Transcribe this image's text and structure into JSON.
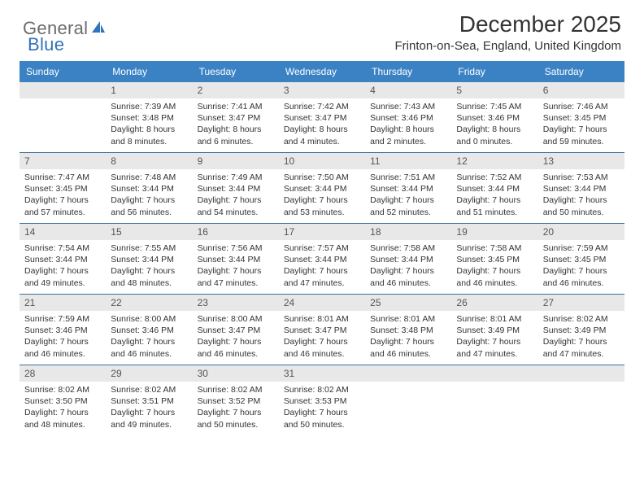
{
  "logo": {
    "general": "General",
    "blue": "Blue",
    "icon_fill": "#2f73b8"
  },
  "header": {
    "title": "December 2025",
    "location": "Frinton-on-Sea, England, United Kingdom"
  },
  "colors": {
    "header_bg": "#3b82c4",
    "header_text": "#ffffff",
    "daynum_bg": "#e8e8e8",
    "daynum_text": "#555555",
    "body_text": "#333333",
    "week_border": "#3b6fa0"
  },
  "weekdays": [
    "Sunday",
    "Monday",
    "Tuesday",
    "Wednesday",
    "Thursday",
    "Friday",
    "Saturday"
  ],
  "weeks": [
    [
      {
        "day": "",
        "lines": []
      },
      {
        "day": "1",
        "lines": [
          "Sunrise: 7:39 AM",
          "Sunset: 3:48 PM",
          "Daylight: 8 hours",
          "and 8 minutes."
        ]
      },
      {
        "day": "2",
        "lines": [
          "Sunrise: 7:41 AM",
          "Sunset: 3:47 PM",
          "Daylight: 8 hours",
          "and 6 minutes."
        ]
      },
      {
        "day": "3",
        "lines": [
          "Sunrise: 7:42 AM",
          "Sunset: 3:47 PM",
          "Daylight: 8 hours",
          "and 4 minutes."
        ]
      },
      {
        "day": "4",
        "lines": [
          "Sunrise: 7:43 AM",
          "Sunset: 3:46 PM",
          "Daylight: 8 hours",
          "and 2 minutes."
        ]
      },
      {
        "day": "5",
        "lines": [
          "Sunrise: 7:45 AM",
          "Sunset: 3:46 PM",
          "Daylight: 8 hours",
          "and 0 minutes."
        ]
      },
      {
        "day": "6",
        "lines": [
          "Sunrise: 7:46 AM",
          "Sunset: 3:45 PM",
          "Daylight: 7 hours",
          "and 59 minutes."
        ]
      }
    ],
    [
      {
        "day": "7",
        "lines": [
          "Sunrise: 7:47 AM",
          "Sunset: 3:45 PM",
          "Daylight: 7 hours",
          "and 57 minutes."
        ]
      },
      {
        "day": "8",
        "lines": [
          "Sunrise: 7:48 AM",
          "Sunset: 3:44 PM",
          "Daylight: 7 hours",
          "and 56 minutes."
        ]
      },
      {
        "day": "9",
        "lines": [
          "Sunrise: 7:49 AM",
          "Sunset: 3:44 PM",
          "Daylight: 7 hours",
          "and 54 minutes."
        ]
      },
      {
        "day": "10",
        "lines": [
          "Sunrise: 7:50 AM",
          "Sunset: 3:44 PM",
          "Daylight: 7 hours",
          "and 53 minutes."
        ]
      },
      {
        "day": "11",
        "lines": [
          "Sunrise: 7:51 AM",
          "Sunset: 3:44 PM",
          "Daylight: 7 hours",
          "and 52 minutes."
        ]
      },
      {
        "day": "12",
        "lines": [
          "Sunrise: 7:52 AM",
          "Sunset: 3:44 PM",
          "Daylight: 7 hours",
          "and 51 minutes."
        ]
      },
      {
        "day": "13",
        "lines": [
          "Sunrise: 7:53 AM",
          "Sunset: 3:44 PM",
          "Daylight: 7 hours",
          "and 50 minutes."
        ]
      }
    ],
    [
      {
        "day": "14",
        "lines": [
          "Sunrise: 7:54 AM",
          "Sunset: 3:44 PM",
          "Daylight: 7 hours",
          "and 49 minutes."
        ]
      },
      {
        "day": "15",
        "lines": [
          "Sunrise: 7:55 AM",
          "Sunset: 3:44 PM",
          "Daylight: 7 hours",
          "and 48 minutes."
        ]
      },
      {
        "day": "16",
        "lines": [
          "Sunrise: 7:56 AM",
          "Sunset: 3:44 PM",
          "Daylight: 7 hours",
          "and 47 minutes."
        ]
      },
      {
        "day": "17",
        "lines": [
          "Sunrise: 7:57 AM",
          "Sunset: 3:44 PM",
          "Daylight: 7 hours",
          "and 47 minutes."
        ]
      },
      {
        "day": "18",
        "lines": [
          "Sunrise: 7:58 AM",
          "Sunset: 3:44 PM",
          "Daylight: 7 hours",
          "and 46 minutes."
        ]
      },
      {
        "day": "19",
        "lines": [
          "Sunrise: 7:58 AM",
          "Sunset: 3:45 PM",
          "Daylight: 7 hours",
          "and 46 minutes."
        ]
      },
      {
        "day": "20",
        "lines": [
          "Sunrise: 7:59 AM",
          "Sunset: 3:45 PM",
          "Daylight: 7 hours",
          "and 46 minutes."
        ]
      }
    ],
    [
      {
        "day": "21",
        "lines": [
          "Sunrise: 7:59 AM",
          "Sunset: 3:46 PM",
          "Daylight: 7 hours",
          "and 46 minutes."
        ]
      },
      {
        "day": "22",
        "lines": [
          "Sunrise: 8:00 AM",
          "Sunset: 3:46 PM",
          "Daylight: 7 hours",
          "and 46 minutes."
        ]
      },
      {
        "day": "23",
        "lines": [
          "Sunrise: 8:00 AM",
          "Sunset: 3:47 PM",
          "Daylight: 7 hours",
          "and 46 minutes."
        ]
      },
      {
        "day": "24",
        "lines": [
          "Sunrise: 8:01 AM",
          "Sunset: 3:47 PM",
          "Daylight: 7 hours",
          "and 46 minutes."
        ]
      },
      {
        "day": "25",
        "lines": [
          "Sunrise: 8:01 AM",
          "Sunset: 3:48 PM",
          "Daylight: 7 hours",
          "and 46 minutes."
        ]
      },
      {
        "day": "26",
        "lines": [
          "Sunrise: 8:01 AM",
          "Sunset: 3:49 PM",
          "Daylight: 7 hours",
          "and 47 minutes."
        ]
      },
      {
        "day": "27",
        "lines": [
          "Sunrise: 8:02 AM",
          "Sunset: 3:49 PM",
          "Daylight: 7 hours",
          "and 47 minutes."
        ]
      }
    ],
    [
      {
        "day": "28",
        "lines": [
          "Sunrise: 8:02 AM",
          "Sunset: 3:50 PM",
          "Daylight: 7 hours",
          "and 48 minutes."
        ]
      },
      {
        "day": "29",
        "lines": [
          "Sunrise: 8:02 AM",
          "Sunset: 3:51 PM",
          "Daylight: 7 hours",
          "and 49 minutes."
        ]
      },
      {
        "day": "30",
        "lines": [
          "Sunrise: 8:02 AM",
          "Sunset: 3:52 PM",
          "Daylight: 7 hours",
          "and 50 minutes."
        ]
      },
      {
        "day": "31",
        "lines": [
          "Sunrise: 8:02 AM",
          "Sunset: 3:53 PM",
          "Daylight: 7 hours",
          "and 50 minutes."
        ]
      },
      {
        "day": "",
        "lines": []
      },
      {
        "day": "",
        "lines": []
      },
      {
        "day": "",
        "lines": []
      }
    ]
  ]
}
